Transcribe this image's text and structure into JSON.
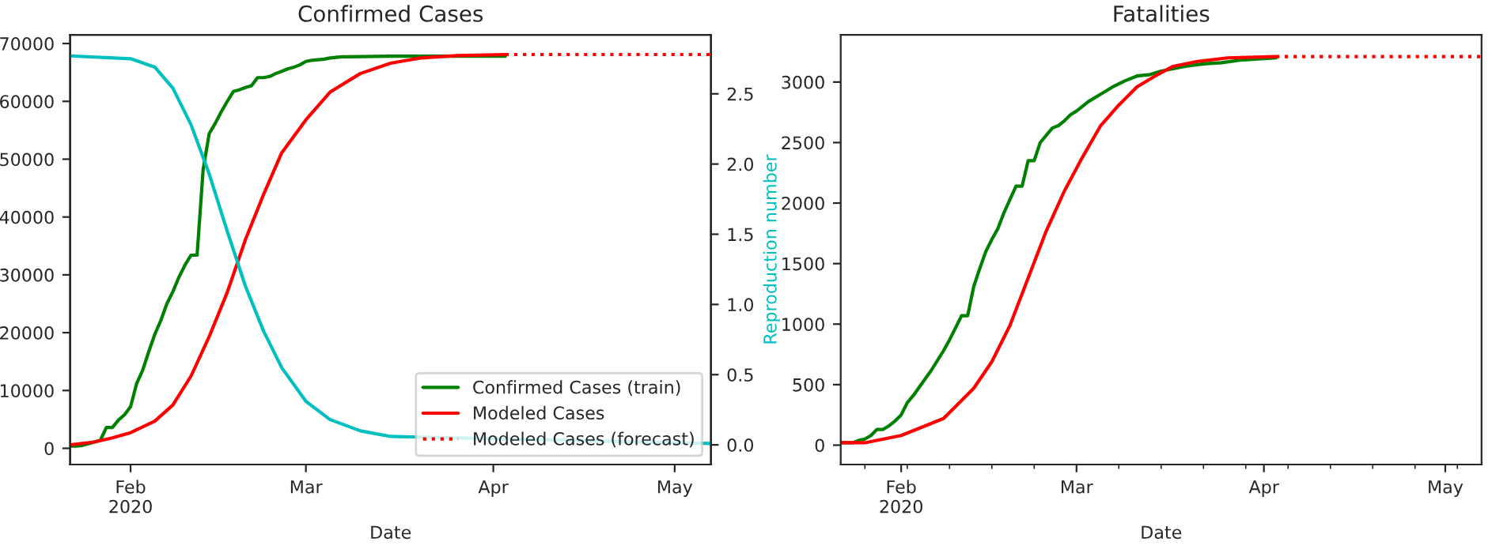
{
  "chart_data": [
    {
      "type": "line",
      "title": "Confirmed Cases",
      "xlabel": "Date",
      "y2label": "Reproduction number",
      "xlim": [
        "2020-01-22",
        "2020-05-07"
      ],
      "xticks": [
        {
          "value": "2020-02-01",
          "label": "Feb\n2020"
        },
        {
          "value": "2020-03-01",
          "label": "Mar"
        },
        {
          "value": "2020-04-01",
          "label": "Apr"
        },
        {
          "value": "2020-05-01",
          "label": "May"
        }
      ],
      "ylim": [
        -2800,
        71500
      ],
      "yticks": [
        0,
        10000,
        20000,
        30000,
        40000,
        50000,
        60000,
        70000
      ],
      "y2lim": [
        -0.14,
        2.92
      ],
      "y2ticks": [
        {
          "value": 0,
          "label": "0.0"
        },
        {
          "value": 0.5,
          "label": "0.5"
        },
        {
          "value": 1,
          "label": "1.0"
        },
        {
          "value": 1.5,
          "label": "1.5"
        },
        {
          "value": 2,
          "label": "2.0"
        },
        {
          "value": 2.5,
          "label": "2.5"
        }
      ],
      "legend": "bottom right",
      "series": [
        {
          "name": "Confirmed Cases (train)",
          "color": "#008000",
          "line_style": "solid",
          "x": [
            "2020-01-22",
            "2020-01-23",
            "2020-01-24",
            "2020-01-25",
            "2020-01-26",
            "2020-01-27",
            "2020-01-28",
            "2020-01-29",
            "2020-01-30",
            "2020-01-31",
            "2020-02-01",
            "2020-02-02",
            "2020-02-03",
            "2020-02-04",
            "2020-02-05",
            "2020-02-06",
            "2020-02-07",
            "2020-02-08",
            "2020-02-09",
            "2020-02-10",
            "2020-02-11",
            "2020-02-12",
            "2020-02-13",
            "2020-02-14",
            "2020-02-15",
            "2020-02-16",
            "2020-02-17",
            "2020-02-18",
            "2020-02-19",
            "2020-02-20",
            "2020-02-21",
            "2020-02-22",
            "2020-02-23",
            "2020-02-24",
            "2020-02-25",
            "2020-02-26",
            "2020-02-27",
            "2020-02-28",
            "2020-02-29",
            "2020-03-01",
            "2020-03-02",
            "2020-03-03",
            "2020-03-04",
            "2020-03-05",
            "2020-03-06",
            "2020-03-07",
            "2020-03-08",
            "2020-03-15",
            "2020-03-25",
            "2020-04-03"
          ],
          "values": [
            400,
            400,
            500,
            800,
            1100,
            1400,
            3600,
            3600,
            4900,
            5800,
            7200,
            11200,
            13500,
            16700,
            19700,
            22100,
            25000,
            27100,
            29600,
            31700,
            33400,
            33400,
            48200,
            54400,
            56200,
            58200,
            60000,
            61700,
            62000,
            62400,
            62700,
            64100,
            64100,
            64300,
            64800,
            65200,
            65600,
            65900,
            66300,
            66900,
            67100,
            67200,
            67300,
            67500,
            67600,
            67700,
            67700,
            67800,
            67800,
            67800
          ]
        },
        {
          "name": "Modeled Cases",
          "color": "#ff0000",
          "line_style": "solid",
          "x": [
            "2020-01-22",
            "2020-01-26",
            "2020-01-29",
            "2020-02-01",
            "2020-02-05",
            "2020-02-08",
            "2020-02-11",
            "2020-02-14",
            "2020-02-17",
            "2020-02-20",
            "2020-02-23",
            "2020-02-26",
            "2020-03-01",
            "2020-03-05",
            "2020-03-10",
            "2020-03-15",
            "2020-03-20",
            "2020-03-26",
            "2020-04-03"
          ],
          "values": [
            600,
            1100,
            1800,
            2700,
            4700,
            7500,
            12500,
            19300,
            27000,
            36100,
            43900,
            51100,
            56800,
            61600,
            64800,
            66600,
            67500,
            67900,
            68100
          ]
        },
        {
          "name": "Modeled Cases (forecast)",
          "color": "#ff0000",
          "line_style": "dotted",
          "x": [
            "2020-04-03",
            "2020-05-07"
          ],
          "values": [
            68100,
            68100
          ]
        },
        {
          "color": "#00bfbf",
          "line_style": "solid",
          "axis": "y2",
          "x": [
            "2020-01-22",
            "2020-02-01",
            "2020-02-05",
            "2020-02-08",
            "2020-02-11",
            "2020-02-14",
            "2020-02-17",
            "2020-02-20",
            "2020-02-23",
            "2020-02-26",
            "2020-03-01",
            "2020-03-05",
            "2020-03-10",
            "2020-03-15",
            "2020-05-07"
          ],
          "values": [
            2.77,
            2.75,
            2.69,
            2.54,
            2.28,
            1.93,
            1.52,
            1.13,
            0.81,
            0.55,
            0.31,
            0.18,
            0.1,
            0.06,
            0.01
          ]
        }
      ]
    },
    {
      "type": "line",
      "title": "Fatalities",
      "xlabel": "Date",
      "xlim": [
        "2020-01-22",
        "2020-05-07"
      ],
      "xticks": [
        {
          "value": "2020-02-01",
          "label": "Feb\n2020"
        },
        {
          "value": "2020-03-01",
          "label": "Mar"
        },
        {
          "value": "2020-04-01",
          "label": "Apr"
        },
        {
          "value": "2020-05-01",
          "label": "May"
        }
      ],
      "ylim": [
        -160,
        3390
      ],
      "yticks": [
        0,
        500,
        1000,
        1500,
        2000,
        2500,
        3000
      ],
      "series": [
        {
          "color": "#008000",
          "line_style": "solid",
          "x": [
            "2020-01-22",
            "2020-01-23",
            "2020-01-24",
            "2020-01-25",
            "2020-01-26",
            "2020-01-27",
            "2020-01-28",
            "2020-01-29",
            "2020-01-30",
            "2020-01-31",
            "2020-02-01",
            "2020-02-02",
            "2020-02-03",
            "2020-02-04",
            "2020-02-05",
            "2020-02-06",
            "2020-02-07",
            "2020-02-08",
            "2020-02-09",
            "2020-02-10",
            "2020-02-11",
            "2020-02-12",
            "2020-02-13",
            "2020-02-14",
            "2020-02-15",
            "2020-02-16",
            "2020-02-17",
            "2020-02-18",
            "2020-02-19",
            "2020-02-20",
            "2020-02-21",
            "2020-02-22",
            "2020-02-23",
            "2020-02-24",
            "2020-02-25",
            "2020-02-26",
            "2020-02-27",
            "2020-02-28",
            "2020-02-29",
            "2020-03-01",
            "2020-03-03",
            "2020-03-05",
            "2020-03-07",
            "2020-03-09",
            "2020-03-11",
            "2020-03-13",
            "2020-03-15",
            "2020-03-17",
            "2020-03-19",
            "2020-03-22",
            "2020-03-25",
            "2020-03-28",
            "2020-03-31",
            "2020-04-03"
          ],
          "values": [
            20,
            20,
            20,
            40,
            50,
            80,
            130,
            130,
            160,
            200,
            250,
            350,
            410,
            480,
            550,
            620,
            700,
            780,
            870,
            970,
            1070,
            1070,
            1310,
            1460,
            1600,
            1700,
            1790,
            1920,
            2030,
            2140,
            2140,
            2350,
            2350,
            2500,
            2560,
            2620,
            2640,
            2680,
            2730,
            2760,
            2840,
            2900,
            2960,
            3010,
            3050,
            3060,
            3090,
            3110,
            3130,
            3150,
            3160,
            3180,
            3190,
            3200
          ]
        },
        {
          "color": "#ff0000",
          "line_style": "solid",
          "x": [
            "2020-01-22",
            "2020-01-26",
            "2020-02-01",
            "2020-02-05",
            "2020-02-08",
            "2020-02-10",
            "2020-02-13",
            "2020-02-16",
            "2020-02-19",
            "2020-02-22",
            "2020-02-25",
            "2020-02-28",
            "2020-03-02",
            "2020-03-05",
            "2020-03-08",
            "2020-03-11",
            "2020-03-14",
            "2020-03-17",
            "2020-03-21",
            "2020-03-26",
            "2020-04-03"
          ],
          "values": [
            20,
            20,
            80,
            160,
            220,
            320,
            470,
            690,
            990,
            1380,
            1770,
            2100,
            2380,
            2640,
            2810,
            2960,
            3050,
            3130,
            3170,
            3200,
            3210
          ]
        },
        {
          "color": "#ff0000",
          "line_style": "dotted",
          "x": [
            "2020-04-03",
            "2020-05-07"
          ],
          "values": [
            3210,
            3210
          ]
        }
      ]
    }
  ]
}
